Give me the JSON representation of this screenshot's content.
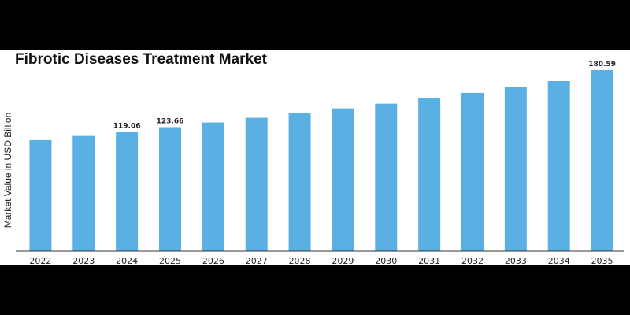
{
  "chart_data": {
    "type": "bar",
    "title": "Fibrotic Diseases Treatment Market",
    "ylabel": "Market Value in USD Billion",
    "xlabel": "",
    "categories": [
      "2022",
      "2023",
      "2024",
      "2025",
      "2026",
      "2027",
      "2028",
      "2029",
      "2030",
      "2031",
      "2032",
      "2033",
      "2034",
      "2035"
    ],
    "values": [
      110.8,
      114.9,
      119.06,
      123.66,
      128.3,
      133.0,
      137.5,
      142.4,
      147.1,
      152.3,
      157.9,
      163.4,
      169.6,
      180.59
    ],
    "data_labels": [
      null,
      null,
      "119.06",
      "123.66",
      null,
      null,
      null,
      null,
      null,
      null,
      null,
      null,
      null,
      "180.59"
    ],
    "ylim": [
      0,
      190
    ],
    "bar_color": "#5aafe3",
    "grid": false
  }
}
